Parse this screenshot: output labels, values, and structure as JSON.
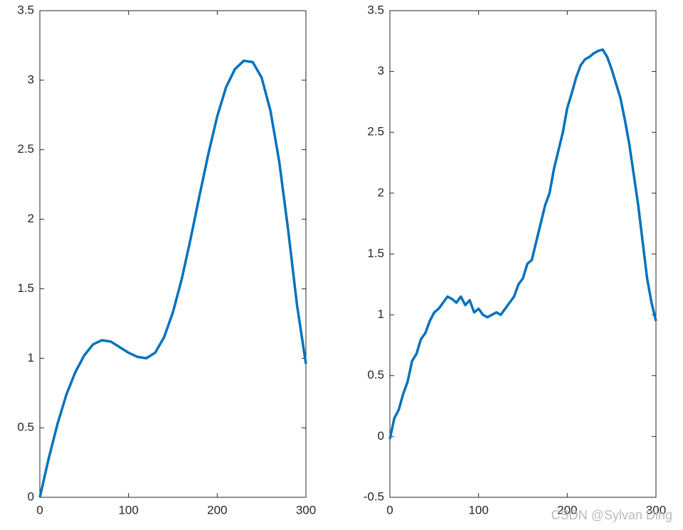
{
  "chart_data": [
    {
      "type": "line",
      "x": [
        0,
        10,
        20,
        30,
        40,
        50,
        60,
        70,
        80,
        90,
        100,
        110,
        120,
        130,
        140,
        150,
        160,
        170,
        180,
        190,
        200,
        210,
        220,
        230,
        240,
        250,
        260,
        270,
        280,
        290,
        300
      ],
      "series": [
        {
          "color": "#0072bd",
          "values": [
            0,
            0.28,
            0.53,
            0.74,
            0.9,
            1.02,
            1.1,
            1.13,
            1.12,
            1.08,
            1.04,
            1.01,
            1.0,
            1.04,
            1.15,
            1.33,
            1.57,
            1.86,
            2.17,
            2.47,
            2.74,
            2.95,
            3.08,
            3.14,
            3.13,
            3.02,
            2.78,
            2.41,
            1.92,
            1.38,
            0.96
          ]
        }
      ],
      "xlim": [
        0,
        300
      ],
      "xticks": [
        0,
        100,
        200,
        300
      ],
      "ylim": [
        0,
        3.5
      ],
      "yticks": [
        0,
        0.5,
        1,
        1.5,
        2,
        2.5,
        3,
        3.5
      ]
    },
    {
      "type": "line",
      "x": [
        0,
        5,
        10,
        15,
        20,
        25,
        30,
        35,
        40,
        45,
        50,
        55,
        60,
        65,
        70,
        75,
        80,
        85,
        90,
        95,
        100,
        105,
        110,
        115,
        120,
        125,
        130,
        135,
        140,
        145,
        150,
        155,
        160,
        165,
        170,
        175,
        180,
        185,
        190,
        195,
        200,
        205,
        210,
        215,
        220,
        225,
        230,
        235,
        240,
        245,
        250,
        255,
        260,
        265,
        270,
        275,
        280,
        285,
        290,
        295,
        300
      ],
      "series": [
        {
          "color": "#0072bd",
          "values": [
            -0.02,
            0.15,
            0.22,
            0.35,
            0.45,
            0.62,
            0.68,
            0.8,
            0.85,
            0.95,
            1.02,
            1.05,
            1.1,
            1.15,
            1.13,
            1.1,
            1.15,
            1.08,
            1.12,
            1.02,
            1.05,
            1.0,
            0.98,
            1.0,
            1.02,
            1.0,
            1.05,
            1.1,
            1.15,
            1.25,
            1.3,
            1.42,
            1.45,
            1.6,
            1.75,
            1.9,
            2.0,
            2.2,
            2.35,
            2.5,
            2.7,
            2.82,
            2.95,
            3.05,
            3.1,
            3.12,
            3.15,
            3.17,
            3.18,
            3.12,
            3.02,
            2.9,
            2.78,
            2.6,
            2.4,
            2.15,
            1.9,
            1.6,
            1.3,
            1.1,
            0.95
          ]
        }
      ],
      "xlim": [
        0,
        300
      ],
      "xticks": [
        0,
        100,
        200,
        300
      ],
      "ylim": [
        -0.5,
        3.5
      ],
      "yticks": [
        -0.5,
        0,
        0.5,
        1,
        1.5,
        2,
        2.5,
        3,
        3.5
      ]
    }
  ],
  "watermark": "CSDN @Sylvan Ding"
}
